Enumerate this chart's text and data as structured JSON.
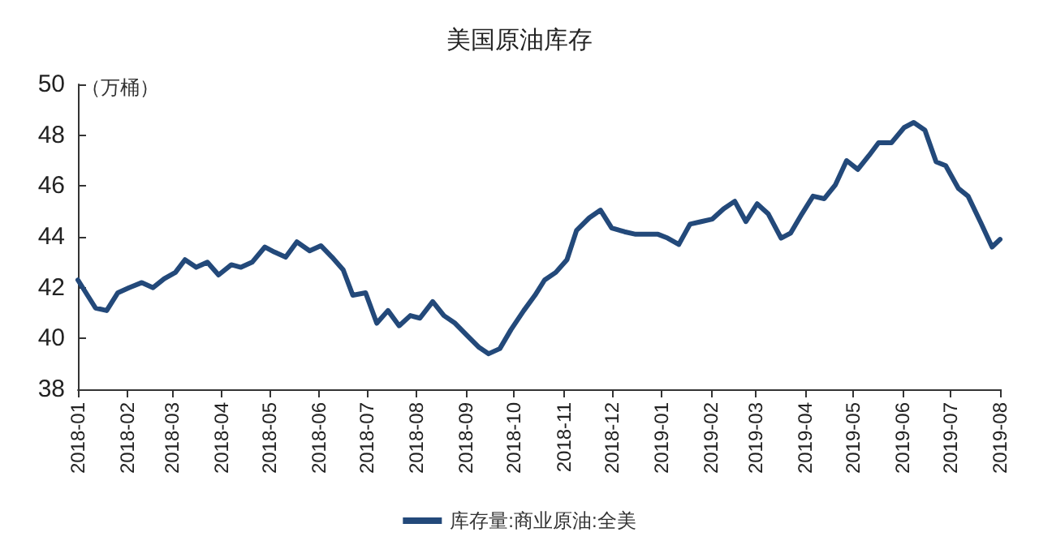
{
  "chart_data": {
    "type": "line",
    "title": "美国原油库存",
    "ylabel": "（万桶）",
    "x": [
      "2018-01-01",
      "2018-01-12",
      "2018-01-19",
      "2018-01-26",
      "2018-02-02",
      "2018-02-10",
      "2018-02-17",
      "2018-02-24",
      "2018-03-03",
      "2018-03-09",
      "2018-03-16",
      "2018-03-23",
      "2018-03-30",
      "2018-04-07",
      "2018-04-13",
      "2018-04-20",
      "2018-04-28",
      "2018-05-04",
      "2018-05-11",
      "2018-05-18",
      "2018-05-26",
      "2018-06-02",
      "2018-06-09",
      "2018-06-16",
      "2018-06-22",
      "2018-06-30",
      "2018-07-07",
      "2018-07-14",
      "2018-07-21",
      "2018-07-28",
      "2018-08-03",
      "2018-08-11",
      "2018-08-18",
      "2018-08-25",
      "2018-09-01",
      "2018-09-09",
      "2018-09-15",
      "2018-09-22",
      "2018-09-29",
      "2018-10-07",
      "2018-10-14",
      "2018-10-20",
      "2018-10-27",
      "2018-11-03",
      "2018-11-09",
      "2018-11-17",
      "2018-11-24",
      "2018-12-01",
      "2018-12-09",
      "2018-12-16",
      "2018-12-23",
      "2018-12-30",
      "2019-01-05",
      "2019-01-12",
      "2019-01-19",
      "2019-01-26",
      "2019-02-02",
      "2019-02-09",
      "2019-02-16",
      "2019-02-23",
      "2019-03-02",
      "2019-03-09",
      "2019-03-17",
      "2019-03-23",
      "2019-03-30",
      "2019-04-06",
      "2019-04-13",
      "2019-04-20",
      "2019-04-27",
      "2019-05-04",
      "2019-05-11",
      "2019-05-17",
      "2019-05-25",
      "2019-06-02",
      "2019-06-08",
      "2019-06-15",
      "2019-06-22",
      "2019-06-28",
      "2019-07-06",
      "2019-07-12",
      "2019-07-20",
      "2019-07-27",
      "2019-08-01"
    ],
    "series": [
      {
        "name": "库存量:商业原油:全美",
        "color": "#23497a",
        "values": [
          42.3,
          41.2,
          41.1,
          41.8,
          42.0,
          42.2,
          42.0,
          42.35,
          42.6,
          43.1,
          42.8,
          43.0,
          42.5,
          42.9,
          42.8,
          43.0,
          43.6,
          43.4,
          43.2,
          43.8,
          43.45,
          43.65,
          43.2,
          42.7,
          41.7,
          41.8,
          40.6,
          41.1,
          40.5,
          40.9,
          40.8,
          41.45,
          40.9,
          40.6,
          40.15,
          39.65,
          39.4,
          39.6,
          40.35,
          41.1,
          41.7,
          42.3,
          42.6,
          43.1,
          44.25,
          44.75,
          45.05,
          44.35,
          44.2,
          44.1,
          44.1,
          44.1,
          43.95,
          43.7,
          44.5,
          44.6,
          44.7,
          45.1,
          45.4,
          44.6,
          45.3,
          44.9,
          43.95,
          44.15,
          44.9,
          45.6,
          45.5,
          46.05,
          47.0,
          46.65,
          47.2,
          47.7,
          47.7,
          48.3,
          48.5,
          48.2,
          46.95,
          46.8,
          45.9,
          45.6,
          44.55,
          43.6,
          43.9
        ]
      }
    ],
    "xlim": [
      "2018-01-01",
      "2019-08-01"
    ],
    "xticks": [
      "2018-01",
      "2018-02",
      "2018-03",
      "2018-04",
      "2018-05",
      "2018-06",
      "2018-07",
      "2018-08",
      "2018-09",
      "2018-10",
      "2018-11",
      "2018-12",
      "2019-01",
      "2019-02",
      "2019-03",
      "2019-04",
      "2019-05",
      "2019-06",
      "2019-07",
      "2019-08"
    ],
    "ylim": [
      38,
      50
    ],
    "yticks": [
      38,
      40,
      42,
      44,
      46,
      48,
      50
    ],
    "grid": false,
    "legend": "bottom",
    "marker": "none",
    "line_style": "solid"
  }
}
